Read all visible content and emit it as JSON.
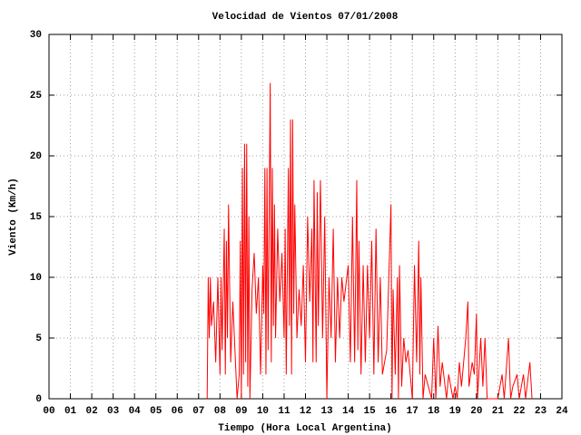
{
  "chart_data": {
    "type": "line",
    "title": "Velocidad de Vientos 07/01/2008",
    "xlabel": "Tiempo (Hora Local Argentina)",
    "ylabel": "Viento (Km/h)",
    "grid": true,
    "xlim": [
      0,
      24
    ],
    "ylim": [
      0,
      30
    ],
    "xticks": [
      {
        "value": 0,
        "label": "00"
      },
      {
        "value": 1,
        "label": "01"
      },
      {
        "value": 2,
        "label": "02"
      },
      {
        "value": 3,
        "label": "03"
      },
      {
        "value": 4,
        "label": "04"
      },
      {
        "value": 5,
        "label": "05"
      },
      {
        "value": 6,
        "label": "06"
      },
      {
        "value": 7,
        "label": "07"
      },
      {
        "value": 8,
        "label": "08"
      },
      {
        "value": 9,
        "label": "09"
      },
      10,
      11,
      12,
      13,
      14,
      15,
      16,
      17,
      18,
      19,
      20,
      21,
      22,
      23,
      24
    ],
    "yticks": [
      0,
      5,
      10,
      15,
      20,
      25,
      30
    ],
    "series": [
      {
        "color": "#ff0000",
        "x": [
          7.4,
          7.45,
          7.5,
          7.55,
          7.6,
          7.7,
          7.8,
          7.9,
          8.0,
          8.05,
          8.1,
          8.2,
          8.25,
          8.3,
          8.35,
          8.4,
          8.5,
          8.6,
          8.8,
          8.9,
          8.95,
          9.0,
          9.05,
          9.1,
          9.15,
          9.2,
          9.25,
          9.3,
          9.35,
          9.4,
          9.5,
          9.6,
          9.7,
          9.8,
          9.9,
          10.0,
          10.05,
          10.1,
          10.15,
          10.2,
          10.25,
          10.3,
          10.35,
          10.4,
          10.45,
          10.5,
          10.55,
          10.6,
          10.7,
          10.8,
          10.9,
          11.0,
          11.05,
          11.1,
          11.2,
          11.25,
          11.3,
          11.35,
          11.4,
          11.45,
          11.5,
          11.6,
          11.7,
          11.8,
          11.9,
          12.0,
          12.1,
          12.2,
          12.3,
          12.35,
          12.4,
          12.5,
          12.55,
          12.6,
          12.7,
          12.8,
          12.9,
          13.0,
          13.1,
          13.2,
          13.3,
          13.4,
          13.5,
          13.6,
          13.7,
          13.8,
          14.0,
          14.1,
          14.2,
          14.3,
          14.4,
          14.45,
          14.5,
          14.6,
          14.7,
          14.8,
          14.9,
          15.0,
          15.1,
          15.2,
          15.3,
          15.4,
          15.5,
          15.6,
          15.8,
          16.0,
          16.05,
          16.1,
          16.2,
          16.3,
          16.35,
          16.4,
          16.5,
          16.6,
          16.7,
          16.8,
          17.0,
          17.1,
          17.2,
          17.3,
          17.35,
          17.4,
          17.5,
          17.6,
          17.9,
          18.0,
          18.1,
          18.2,
          18.3,
          18.4,
          18.6,
          18.7,
          18.9,
          19.0,
          19.1,
          19.2,
          19.3,
          19.5,
          19.6,
          19.65,
          19.8,
          19.9,
          20.0,
          20.05,
          20.2,
          20.3,
          20.4,
          20.5,
          21.0,
          21.2,
          21.3,
          21.5,
          21.6,
          21.7,
          21.9,
          22.0,
          22.2,
          22.3,
          22.5,
          22.6
        ],
        "values": [
          0,
          10,
          5,
          10,
          6,
          8,
          3,
          10,
          2,
          10,
          4,
          14,
          2,
          13,
          5,
          16,
          3,
          8,
          0,
          2,
          13,
          0,
          19,
          2,
          21,
          3,
          21,
          1,
          15,
          0,
          9,
          12,
          7,
          10,
          2,
          11,
          7,
          19,
          2,
          19,
          4,
          15,
          26,
          3,
          19,
          6,
          16,
          5,
          14,
          8,
          12,
          5,
          14,
          2,
          19,
          6,
          23,
          2,
          23,
          7,
          16,
          5,
          9,
          6,
          11,
          3,
          15,
          8,
          14,
          3,
          18,
          3,
          17,
          6,
          18,
          5,
          15,
          0,
          10,
          5,
          14,
          3,
          10,
          5,
          10,
          8,
          11,
          3,
          15,
          3,
          18,
          4,
          13,
          2,
          11,
          3,
          11,
          5,
          13,
          2,
          14,
          3,
          10,
          2,
          4,
          16,
          0,
          9,
          2,
          10,
          0,
          11,
          1,
          5,
          3,
          4,
          0,
          11,
          3,
          13,
          2,
          10,
          0,
          2,
          0,
          5,
          0,
          6,
          1,
          3,
          0,
          2,
          0,
          1,
          0,
          3,
          1,
          5,
          8,
          1,
          3,
          2,
          7,
          0,
          5,
          1,
          5,
          0,
          0,
          2,
          0,
          5,
          0,
          1,
          2,
          0,
          2,
          0,
          3,
          0
        ]
      }
    ]
  }
}
